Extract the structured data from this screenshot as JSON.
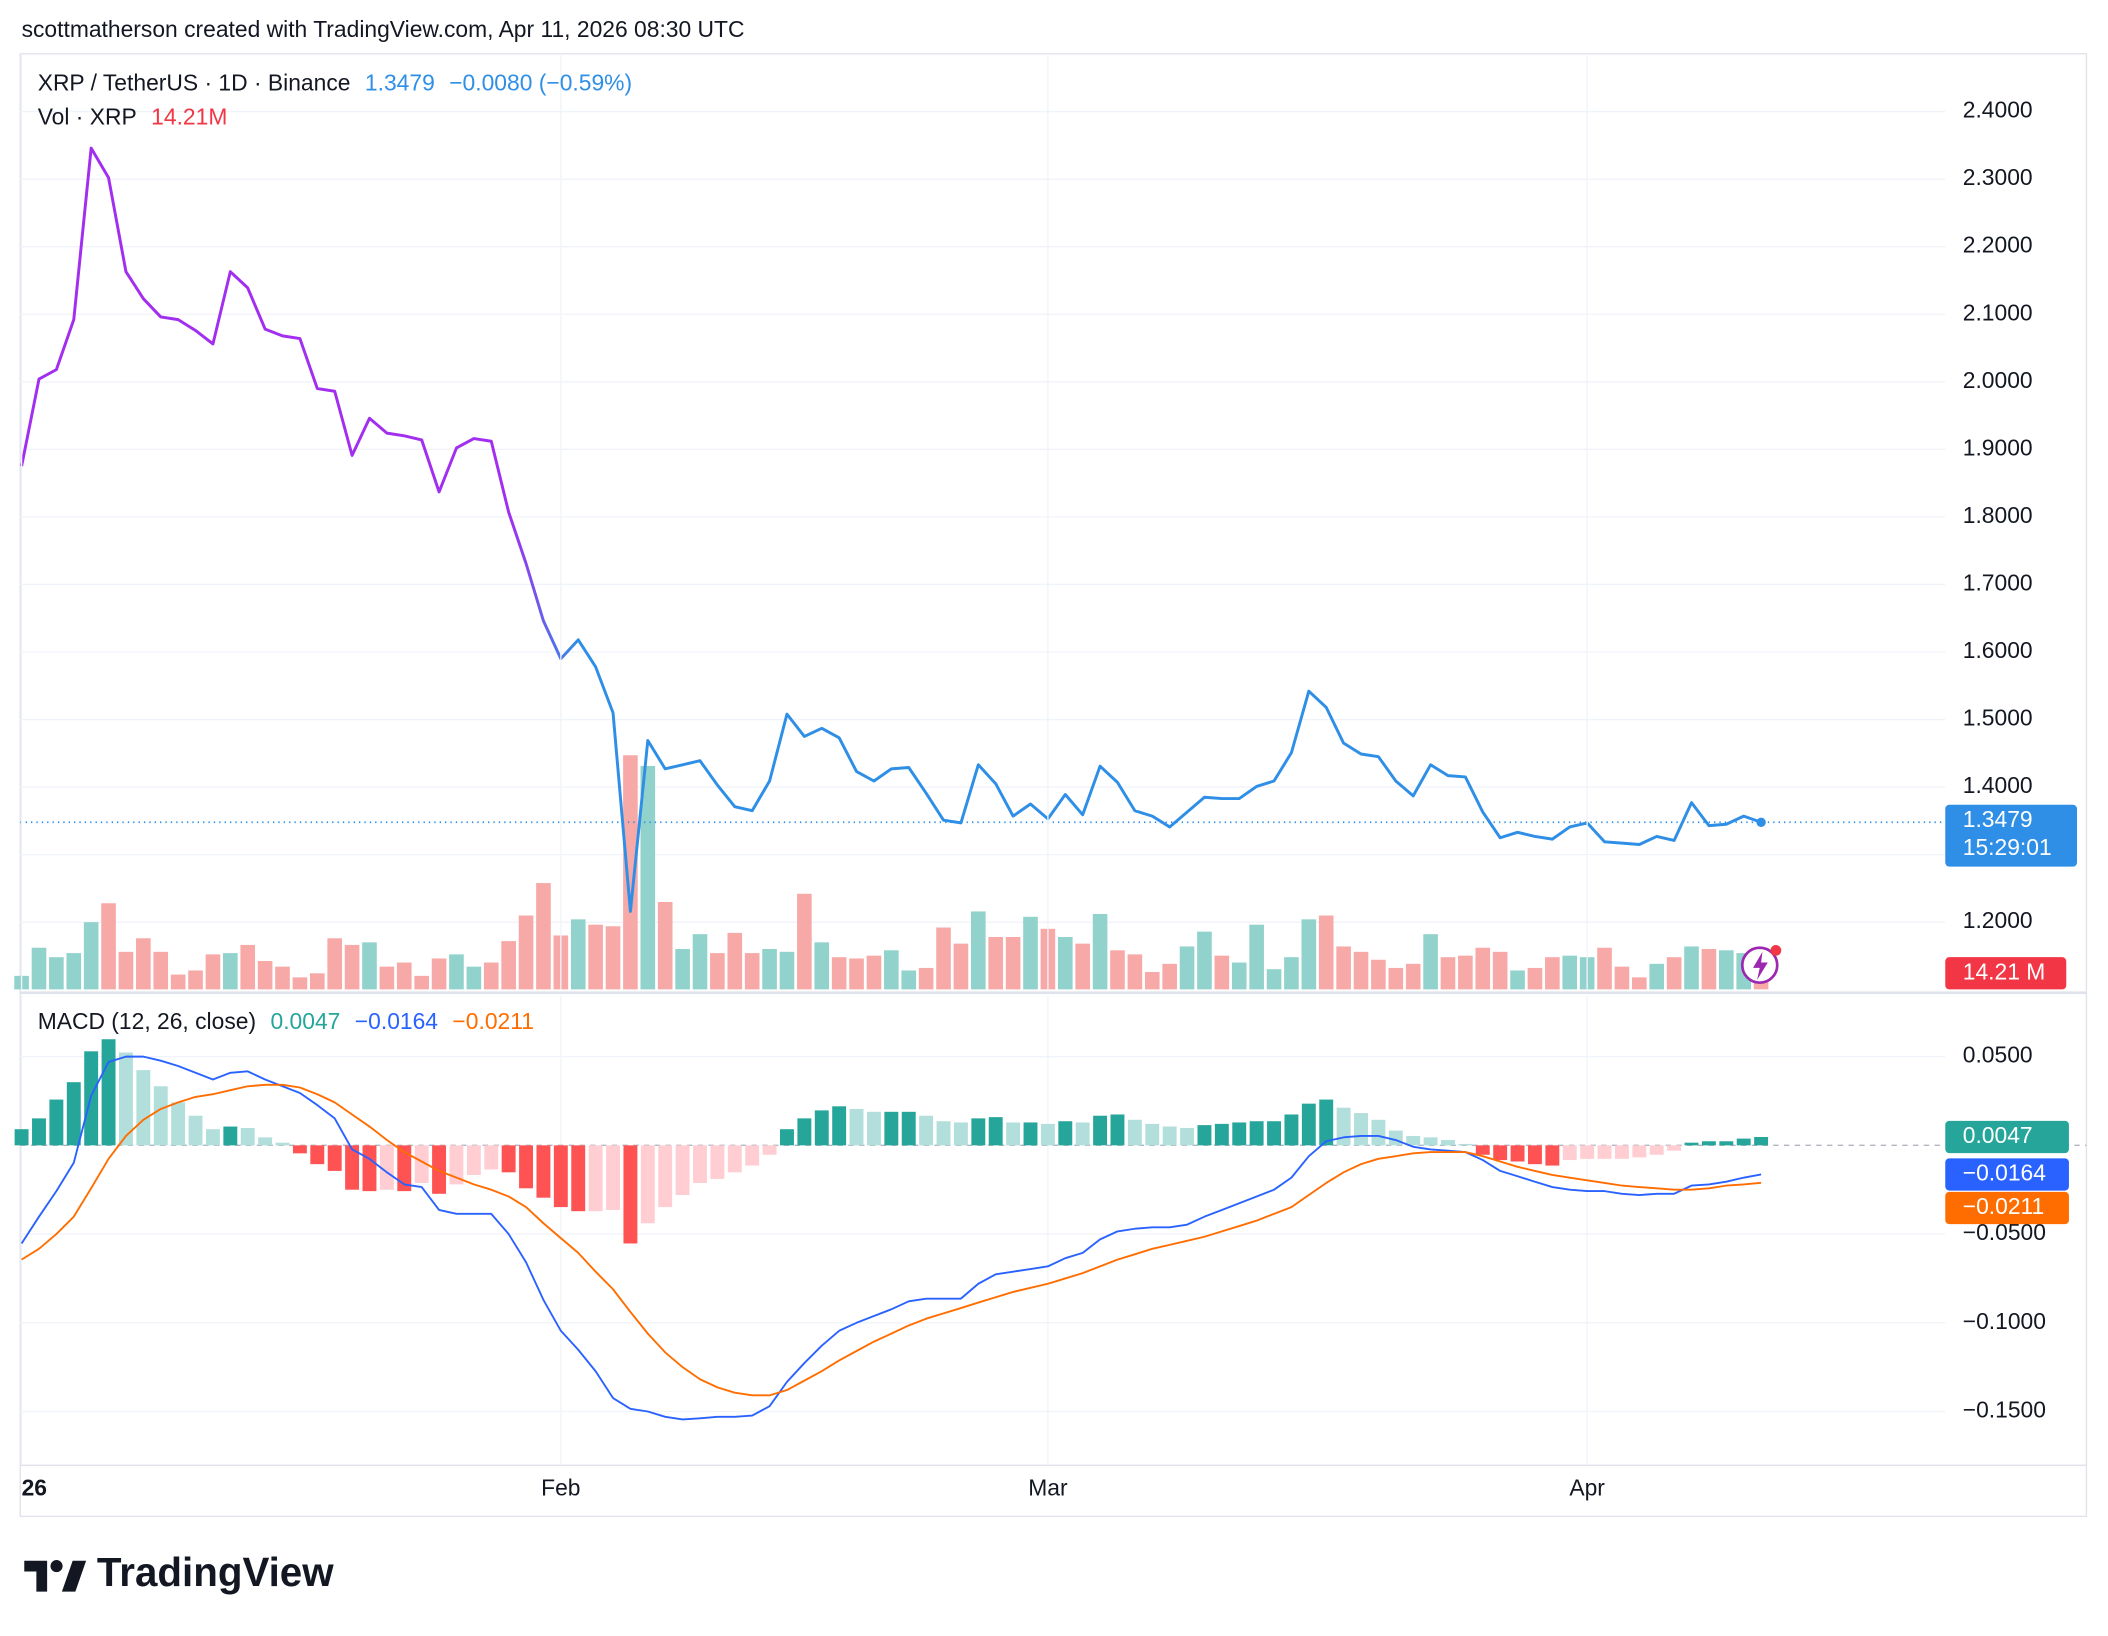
{
  "watermark": "scottmatherson created with TradingView.com, Apr 11, 2026 08:30 UTC",
  "brand": "TradingView",
  "chart_data": [
    {
      "type": "line",
      "ylim": [
        1.1005,
        2.4856
      ],
      "yticks": [
        {
          "value": 2.4,
          "label": "2.4000"
        },
        {
          "value": 2.3,
          "label": "2.3000"
        },
        {
          "value": 2.2,
          "label": "2.2000"
        },
        {
          "value": 2.1,
          "label": "2.1000"
        },
        {
          "value": 2.0,
          "label": "2.0000"
        },
        {
          "value": 1.9,
          "label": "1.9000"
        },
        {
          "value": 1.8,
          "label": "1.8000"
        },
        {
          "value": 1.7,
          "label": "1.7000"
        },
        {
          "value": 1.6,
          "label": "1.6000"
        },
        {
          "value": 1.5,
          "label": "1.5000"
        },
        {
          "value": 1.4,
          "label": "1.4000"
        },
        {
          "value": 1.3,
          "label": "1.3000"
        },
        {
          "value": 1.2,
          "label": "1.2000"
        }
      ],
      "y2lim": [
        0,
        366
      ],
      "grid": true,
      "series": [
        {
          "name": "XRP / TetherUS · 1D · Binance",
          "color": [
            "#a22ef0",
            "#2f8fe6"
          ],
          "change_label": "−0.0080 (−0.59%)",
          "timer": "15:29:01",
          "values": [
            1.875,
            2.004,
            2.018,
            2.092,
            2.346,
            2.302,
            2.163,
            2.123,
            2.096,
            2.092,
            2.076,
            2.056,
            2.163,
            2.139,
            2.078,
            2.068,
            2.064,
            1.99,
            1.986,
            1.891,
            1.946,
            1.924,
            1.92,
            1.914,
            1.837,
            1.902,
            1.916,
            1.912,
            1.807,
            1.731,
            1.646,
            1.59,
            1.618,
            1.578,
            1.51,
            1.216,
            1.469,
            1.427,
            1.433,
            1.439,
            1.403,
            1.371,
            1.365,
            1.409,
            1.508,
            1.475,
            1.487,
            1.473,
            1.423,
            1.409,
            1.427,
            1.429,
            1.391,
            1.351,
            1.347,
            1.433,
            1.405,
            1.357,
            1.375,
            1.353,
            1.389,
            1.359,
            1.431,
            1.407,
            1.365,
            1.357,
            1.341,
            1.363,
            1.385,
            1.383,
            1.383,
            1.401,
            1.409,
            1.451,
            1.542,
            1.518,
            1.465,
            1.449,
            1.445,
            1.409,
            1.387,
            1.433,
            1.417,
            1.415,
            1.363,
            1.325,
            1.333,
            1.327,
            1.323,
            1.341,
            1.347,
            1.319,
            1.317,
            1.315,
            1.327,
            1.321,
            1.377,
            1.343,
            1.345,
            1.357,
            1.3479
          ]
        },
        {
          "name": "Vol · XRP",
          "type": "bar",
          "axis": "y2",
          "colors": [
            "#92d2cc",
            "#f7a9a7"
          ],
          "last_label": "14.21M",
          "badge_label": "14.21 M",
          "badge_color": "#f23645",
          "values": [
            5.3,
            16.3,
            12.6,
            14.2,
            26.3,
            33.7,
            14.7,
            20.0,
            14.7,
            5.8,
            7.4,
            13.7,
            14.2,
            17.4,
            11.1,
            8.9,
            4.7,
            6.3,
            20.0,
            17.4,
            18.4,
            8.9,
            10.5,
            5.3,
            12.1,
            13.7,
            8.9,
            10.5,
            18.9,
            28.9,
            41.6,
            21.1,
            27.4,
            25.3,
            24.7,
            91.6,
            87.4,
            34.2,
            15.8,
            21.6,
            14.2,
            22.1,
            14.2,
            15.8,
            14.7,
            37.4,
            18.4,
            12.6,
            12.1,
            13.2,
            15.3,
            7.4,
            8.4,
            24.2,
            17.9,
            30.5,
            20.5,
            20.5,
            28.4,
            23.7,
            20.5,
            17.9,
            29.5,
            15.3,
            13.7,
            6.8,
            10.0,
            16.8,
            22.6,
            13.2,
            10.5,
            25.3,
            7.9,
            12.6,
            27.4,
            28.9,
            16.8,
            14.7,
            11.6,
            8.4,
            10.0,
            21.6,
            12.6,
            13.2,
            16.3,
            14.7,
            7.4,
            8.4,
            12.6,
            13.2,
            12.6,
            16.3,
            8.9,
            4.7,
            10.0,
            12.6,
            16.8,
            15.8,
            15.3,
            14.2,
            14.21
          ]
        }
      ]
    },
    {
      "type": "macd",
      "title": "MACD (12, 26, close)",
      "categories": [
        "26",
        null,
        null,
        null,
        null,
        null,
        null,
        null,
        null,
        null,
        null,
        null,
        null,
        null,
        null,
        null,
        null,
        null,
        null,
        null,
        null,
        null,
        null,
        null,
        null,
        null,
        null,
        null,
        null,
        null,
        null,
        "Feb",
        null,
        null,
        null,
        null,
        null,
        null,
        null,
        null,
        null,
        null,
        null,
        null,
        null,
        null,
        null,
        null,
        null,
        null,
        null,
        null,
        null,
        null,
        null,
        null,
        null,
        null,
        null,
        "Mar",
        null,
        null,
        null,
        null,
        null,
        null,
        null,
        null,
        null,
        null,
        null,
        null,
        null,
        null,
        null,
        null,
        null,
        null,
        null,
        null,
        null,
        null,
        null,
        null,
        null,
        null,
        null,
        null,
        null,
        null,
        "Apr",
        null,
        null,
        null,
        null,
        null,
        null,
        null,
        null,
        null,
        null
      ],
      "ylim": [
        -0.1803,
        0.0841
      ],
      "yticks": [
        {
          "value": 0.05,
          "label": "0.0500"
        },
        {
          "value": -0.05,
          "label": "−0.0500"
        },
        {
          "value": -0.1,
          "label": "−0.1000"
        },
        {
          "value": -0.15,
          "label": "−0.1500"
        }
      ],
      "grid": true,
      "series": [
        {
          "type": "bar",
          "colors": [
            "#26a69a",
            "#b2dfdb",
            "#ff5252",
            "#ffcdd2"
          ],
          "values": [
            0.0091,
            0.0152,
            0.0258,
            0.0356,
            0.053,
            0.0598,
            0.0523,
            0.0424,
            0.0333,
            0.0242,
            0.0167,
            0.0091,
            0.0106,
            0.0098,
            0.0045,
            0.0015,
            -0.0045,
            -0.0106,
            -0.0144,
            -0.025,
            -0.0258,
            -0.025,
            -0.0258,
            -0.0212,
            -0.0273,
            -0.022,
            -0.0167,
            -0.0136,
            -0.0152,
            -0.0242,
            -0.0295,
            -0.0348,
            -0.0371,
            -0.0371,
            -0.0364,
            -0.0553,
            -0.0439,
            -0.0348,
            -0.028,
            -0.0212,
            -0.0189,
            -0.0152,
            -0.0114,
            -0.0053,
            0.0091,
            0.0152,
            0.0197,
            0.022,
            0.0205,
            0.0189,
            0.0189,
            0.0189,
            0.0167,
            0.0136,
            0.0129,
            0.0152,
            0.0159,
            0.0129,
            0.0129,
            0.0121,
            0.0136,
            0.0129,
            0.0167,
            0.0174,
            0.0144,
            0.0121,
            0.0106,
            0.0098,
            0.0114,
            0.0121,
            0.0129,
            0.0136,
            0.0136,
            0.0174,
            0.0235,
            0.0258,
            0.0212,
            0.0182,
            0.0144,
            0.0083,
            0.0053,
            0.0045,
            0.003,
            0.0008,
            -0.0053,
            -0.0083,
            -0.0091,
            -0.0106,
            -0.0114,
            -0.0083,
            -0.0076,
            -0.0076,
            -0.0076,
            -0.0068,
            -0.0053,
            -0.003,
            0.0015,
            0.0023,
            0.0023,
            0.0038,
            0.0047
          ]
        },
        {
          "color": "#2962ff",
          "last_label": "−0.0164",
          "values": [
            -0.0553,
            -0.0402,
            -0.0258,
            -0.0098,
            0.028,
            0.047,
            0.05,
            0.05,
            0.0477,
            0.0447,
            0.0409,
            0.0371,
            0.0409,
            0.0417,
            0.0371,
            0.0333,
            0.0295,
            0.0227,
            0.0152,
            -0.0023,
            -0.0076,
            -0.0152,
            -0.022,
            -0.0235,
            -0.0364,
            -0.0386,
            -0.0386,
            -0.0386,
            -0.05,
            -0.0659,
            -0.0871,
            -0.1045,
            -0.1152,
            -0.1273,
            -0.1424,
            -0.1485,
            -0.15,
            -0.153,
            -0.1545,
            -0.1538,
            -0.153,
            -0.153,
            -0.1523,
            -0.147,
            -0.1333,
            -0.1227,
            -0.1129,
            -0.1045,
            -0.1,
            -0.0962,
            -0.0924,
            -0.0879,
            -0.0864,
            -0.0864,
            -0.0864,
            -0.078,
            -0.0727,
            -0.0712,
            -0.0697,
            -0.0682,
            -0.0636,
            -0.0606,
            -0.053,
            -0.0485,
            -0.047,
            -0.0462,
            -0.0462,
            -0.0447,
            -0.0402,
            -0.0364,
            -0.0326,
            -0.0288,
            -0.025,
            -0.0182,
            -0.0061,
            0.0023,
            0.0045,
            0.0053,
            0.0053,
            0.003,
            -0.0008,
            -0.0023,
            -0.003,
            -0.0038,
            -0.0083,
            -0.0144,
            -0.0174,
            -0.0205,
            -0.0235,
            -0.025,
            -0.0258,
            -0.0258,
            -0.0273,
            -0.028,
            -0.0273,
            -0.0273,
            -0.0227,
            -0.022,
            -0.0205,
            -0.0182,
            -0.0164
          ]
        },
        {
          "color": "#ff6d00",
          "last_label": "−0.0211",
          "values": [
            -0.0644,
            -0.0583,
            -0.05,
            -0.0402,
            -0.0242,
            -0.0076,
            0.0053,
            0.0144,
            0.0205,
            0.0242,
            0.0273,
            0.0288,
            0.0311,
            0.0333,
            0.0341,
            0.0341,
            0.0326,
            0.0288,
            0.0242,
            0.0174,
            0.0106,
            0.003,
            -0.0038,
            -0.0091,
            -0.0144,
            -0.0182,
            -0.022,
            -0.025,
            -0.0288,
            -0.0348,
            -0.0439,
            -0.0523,
            -0.0606,
            -0.0712,
            -0.0811,
            -0.0939,
            -0.1061,
            -0.1167,
            -0.125,
            -0.1318,
            -0.1364,
            -0.1394,
            -0.1409,
            -0.1409,
            -0.1379,
            -0.1326,
            -0.1273,
            -0.1212,
            -0.1159,
            -0.1106,
            -0.1061,
            -0.1015,
            -0.0977,
            -0.0947,
            -0.0917,
            -0.0886,
            -0.0856,
            -0.0826,
            -0.0803,
            -0.078,
            -0.075,
            -0.072,
            -0.0682,
            -0.0644,
            -0.0614,
            -0.0583,
            -0.0561,
            -0.0538,
            -0.0515,
            -0.0485,
            -0.0455,
            -0.0424,
            -0.0386,
            -0.0348,
            -0.028,
            -0.0212,
            -0.0152,
            -0.0106,
            -0.0076,
            -0.0061,
            -0.0045,
            -0.0038,
            -0.0038,
            -0.0038,
            -0.0061,
            -0.0091,
            -0.0121,
            -0.0144,
            -0.0167,
            -0.0182,
            -0.0197,
            -0.0212,
            -0.0227,
            -0.0235,
            -0.0242,
            -0.025,
            -0.025,
            -0.0242,
            -0.0227,
            -0.022,
            -0.0211
          ]
        }
      ]
    }
  ]
}
